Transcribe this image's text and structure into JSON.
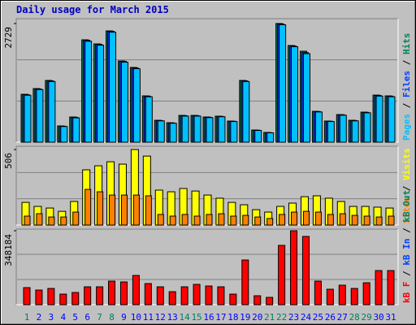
{
  "chart_data": [
    {
      "type": "bar",
      "title": "Daily usage for March 2015",
      "legend_separator": " / ",
      "ylim": [
        0,
        2840
      ],
      "yticks": [
        2729
      ],
      "grid": true,
      "series": [
        {
          "name": "Pages",
          "color": "#00c0ff",
          "values": [
            1080,
            1210,
            1395,
            360,
            560,
            2320,
            2230,
            2530,
            1840,
            1690,
            1045,
            490,
            435,
            600,
            600,
            565,
            585,
            475,
            1395,
            270,
            215,
            2700,
            2195,
            2036,
            695,
            475,
            620,
            490,
            675,
            1060,
            1045
          ]
        },
        {
          "name": "Files",
          "color": "#0040ff",
          "values": [
            1095,
            1225,
            1410,
            368,
            572,
            2345,
            2250,
            2550,
            1860,
            1705,
            1058,
            498,
            442,
            610,
            610,
            574,
            593,
            482,
            1410,
            276,
            220,
            2718,
            2212,
            2060,
            704,
            482,
            630,
            498,
            685,
            1075,
            1058
          ]
        },
        {
          "name": "Hits",
          "color": "#00805c",
          "values": [
            1102,
            1233,
            1420,
            374,
            579,
            2354,
            2260,
            2559,
            1868,
            1719,
            1065,
            504,
            448,
            616,
            616,
            579,
            598,
            486,
            1420,
            280,
            224,
            2729,
            2223,
            2092,
            710,
            486,
            635,
            504,
            691,
            1083,
            1065
          ]
        }
      ]
    },
    {
      "type": "bar",
      "legend_separator": " / ",
      "ylim": [
        0,
        528
      ],
      "yticks": [
        506
      ],
      "grid": true,
      "series": [
        {
          "name": "Sites",
          "color": "#ff8000",
          "values": [
            60,
            76,
            54,
            54,
            87,
            239,
            223,
            201,
            201,
            201,
            196,
            71,
            60,
            71,
            60,
            71,
            76,
            60,
            65,
            54,
            44,
            71,
            87,
            92,
            87,
            71,
            76,
            65,
            60,
            54,
            60
          ]
        },
        {
          "name": "Visits",
          "color": "#ffff00",
          "values": [
            152,
            125,
            114,
            92,
            158,
            370,
            397,
            424,
            408,
            506,
            462,
            234,
            223,
            245,
            228,
            201,
            180,
            152,
            136,
            103,
            87,
            125,
            147,
            190,
            196,
            180,
            158,
            125,
            125,
            120,
            114
          ]
        }
      ]
    },
    {
      "type": "bar",
      "legend_separator": " / ",
      "ylim": [
        0,
        355836
      ],
      "yticks": [
        348184
      ],
      "grid": true,
      "categories": [
        "1",
        "2",
        "3",
        "4",
        "5",
        "6",
        "7",
        "8",
        "9",
        "10",
        "11",
        "12",
        "13",
        "14",
        "15",
        "16",
        "17",
        "18",
        "19",
        "20",
        "21",
        "22",
        "23",
        "24",
        "25",
        "26",
        "27",
        "28",
        "29",
        "30",
        "31"
      ],
      "category_colors": [
        "#00805c",
        "#0000ff",
        "#0000ff",
        "#0000ff",
        "#0000ff",
        "#0000ff",
        "#00805c",
        "#00805c",
        "#0000ff",
        "#0000ff",
        "#0000ff",
        "#0000ff",
        "#0000ff",
        "#00805c",
        "#00805c",
        "#0000ff",
        "#0000ff",
        "#0000ff",
        "#0000ff",
        "#0000ff",
        "#00805c",
        "#00805c",
        "#0000ff",
        "#0000ff",
        "#0000ff",
        "#0000ff",
        "#0000ff",
        "#00805c",
        "#00805c",
        "#0000ff",
        "#0000ff"
      ],
      "series": [
        {
          "name": "kB F",
          "color": "#ff0000",
          "values": [
            80350,
            68870,
            76500,
            49740,
            57390,
            84170,
            84170,
            110950,
            107130,
            137740,
            99480,
            84170,
            61220,
            84170,
            95650,
            88000,
            84170,
            49740,
            210430,
            42090,
            34430,
            279300,
            348184,
            321400,
            110950,
            72700,
            91830,
            76500,
            103300,
            160700,
            160700
          ]
        },
        {
          "name": "kB In",
          "color": "#0040ff"
        },
        {
          "name": "kB Out",
          "color": "#00805c"
        }
      ]
    }
  ]
}
